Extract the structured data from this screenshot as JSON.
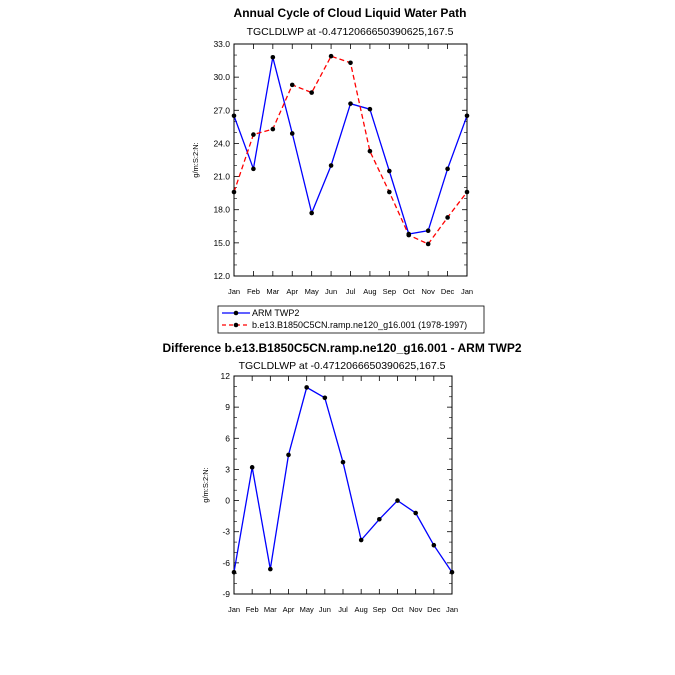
{
  "chart_data": [
    {
      "type": "line",
      "title": "Annual Cycle of Cloud Liquid Water Path",
      "subtitle": "TGCLDLWP at -0.4712066650390625,167.5",
      "xlabel": "",
      "ylabel": "g/m:S:2:N:",
      "categories": [
        "Jan",
        "Feb",
        "Mar",
        "Apr",
        "May",
        "Jun",
        "Jul",
        "Aug",
        "Sep",
        "Oct",
        "Nov",
        "Dec",
        "Jan"
      ],
      "ylim": [
        12.0,
        33.0
      ],
      "yticks": [
        "12.0",
        "15.0",
        "18.0",
        "21.0",
        "24.0",
        "27.0",
        "30.0",
        "33.0"
      ],
      "series": [
        {
          "name": "ARM TWP2",
          "color": "#0000ff",
          "dash": "solid",
          "values": [
            26.5,
            21.7,
            31.8,
            24.9,
            17.7,
            22.0,
            27.6,
            27.1,
            21.5,
            15.8,
            16.1,
            21.7,
            26.5
          ]
        },
        {
          "name": "b.e13.B1850C5CN.ramp.ne120_g16.001 (1978-1997)",
          "color": "#ff0000",
          "dash": "dashed",
          "values": [
            19.6,
            24.8,
            25.3,
            29.3,
            28.6,
            31.9,
            31.3,
            23.3,
            19.6,
            15.7,
            14.9,
            17.3,
            19.6
          ]
        }
      ]
    },
    {
      "type": "line",
      "title": "Difference b.e13.B1850C5CN.ramp.ne120_g16.001 - ARM TWP2",
      "subtitle": "TGCLDLWP at -0.4712066650390625,167.5",
      "xlabel": "",
      "ylabel": "g/m:S:2:N:",
      "categories": [
        "Jan",
        "Feb",
        "Mar",
        "Apr",
        "May",
        "Jun",
        "Jul",
        "Aug",
        "Sep",
        "Oct",
        "Nov",
        "Dec",
        "Jan"
      ],
      "ylim": [
        -9,
        12
      ],
      "yticks": [
        "-9",
        "-6",
        "-3",
        "0",
        "3",
        "6",
        "9",
        "12"
      ],
      "series": [
        {
          "name": "Difference",
          "color": "#0000ff",
          "dash": "solid",
          "values": [
            -6.9,
            3.2,
            -6.6,
            4.4,
            10.9,
            9.9,
            3.7,
            -3.8,
            -1.8,
            0.0,
            -1.2,
            -4.3,
            -6.9
          ]
        }
      ]
    }
  ],
  "colors": {
    "marker": "#000000",
    "axis": "#000000"
  }
}
